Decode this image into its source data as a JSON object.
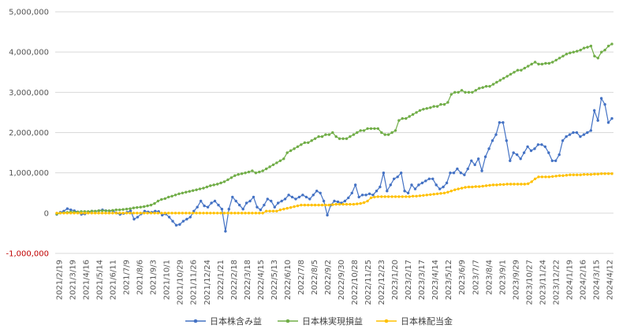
{
  "chart_data": {
    "type": "line",
    "y_ticks": [
      "5,000,000",
      "4,000,000",
      "3,000,000",
      "2,000,000",
      "1,000,000",
      "0",
      "-1,000,000"
    ],
    "y_tick_values": [
      5000000,
      4000000,
      3000000,
      2000000,
      1000000,
      0,
      -1000000
    ],
    "ylim": [
      -1000000,
      5000000
    ],
    "grid": "horizontal",
    "legend_position": "bottom",
    "x_labels": [
      "2021/2/19",
      "2021/3/19",
      "2021/4/16",
      "2021/5/14",
      "2021/6/11",
      "2021/7/9",
      "2021/8/6",
      "2021/9/3",
      "2021/10/1",
      "2021/10/29",
      "2021/11/26",
      "2021/12/24",
      "2022/1/21",
      "2022/2/18",
      "2022/3/18",
      "2022/4/15",
      "2022/5/13",
      "2022/6/10",
      "2022/7/8",
      "2022/8/5",
      "2022/9/2",
      "2022/9/30",
      "2022/10/28",
      "2022/11/25",
      "2022/12/23",
      "2023/1/20",
      "2023/2/17",
      "2023/3/17",
      "2023/4/14",
      "2023/5/12",
      "2023/6/9",
      "2023/7/7",
      "2023/8/4",
      "2023/9/1",
      "2023/9/29",
      "2023/10/27",
      "2023/11/24",
      "2023/12/22",
      "2024/1/19",
      "2024/2/16",
      "2024/3/15",
      "2024/4/12"
    ],
    "series": [
      {
        "name": "日本株含み益",
        "color": "#4472c4",
        "values": [
          -30000,
          20000,
          50000,
          110000,
          80000,
          60000,
          30000,
          -30000,
          -20000,
          20000,
          50000,
          40000,
          60000,
          80000,
          60000,
          50000,
          60000,
          0,
          -30000,
          -10000,
          20000,
          60000,
          -150000,
          -100000,
          -20000,
          50000,
          30000,
          20000,
          50000,
          40000,
          -50000,
          -20000,
          -100000,
          -200000,
          -300000,
          -280000,
          -200000,
          -150000,
          -100000,
          50000,
          150000,
          300000,
          180000,
          150000,
          250000,
          300000,
          200000,
          100000,
          -450000,
          100000,
          400000,
          300000,
          200000,
          100000,
          250000,
          300000,
          400000,
          150000,
          80000,
          200000,
          350000,
          300000,
          150000,
          250000,
          300000,
          350000,
          450000,
          400000,
          350000,
          400000,
          450000,
          400000,
          350000,
          450000,
          550000,
          500000,
          300000,
          -50000,
          200000,
          300000,
          280000,
          250000,
          300000,
          380000,
          500000,
          700000,
          400000,
          450000,
          450000,
          480000,
          450000,
          550000,
          650000,
          1000000,
          550000,
          700000,
          850000,
          900000,
          1000000,
          550000,
          500000,
          700000,
          600000,
          700000,
          750000,
          800000,
          850000,
          850000,
          700000,
          600000,
          650000,
          750000,
          1000000,
          1000000,
          1100000,
          1000000,
          950000,
          1100000,
          1300000,
          1200000,
          1350000,
          1050000,
          1400000,
          1600000,
          1800000,
          1950000,
          2250000,
          2250000,
          1800000,
          1300000,
          1500000,
          1450000,
          1350000,
          1500000,
          1650000,
          1550000,
          1600000,
          1700000,
          1700000,
          1650000,
          1500000,
          1300000,
          1300000,
          1450000,
          1800000,
          1900000,
          1950000,
          2000000,
          2000000,
          1900000,
          1950000,
          2000000,
          2050000,
          2550000,
          2300000,
          2850000,
          2700000,
          2250000,
          2350000
        ]
      },
      {
        "name": "日本株実現損益",
        "color": "#70ad47",
        "values": [
          -20000,
          0,
          10000,
          20000,
          30000,
          30000,
          30000,
          40000,
          40000,
          40000,
          50000,
          50000,
          60000,
          60000,
          60000,
          60000,
          70000,
          80000,
          80000,
          90000,
          100000,
          110000,
          130000,
          140000,
          150000,
          160000,
          180000,
          200000,
          240000,
          300000,
          340000,
          360000,
          400000,
          420000,
          450000,
          480000,
          500000,
          520000,
          540000,
          560000,
          580000,
          600000,
          620000,
          650000,
          680000,
          700000,
          720000,
          750000,
          780000,
          830000,
          880000,
          930000,
          960000,
          980000,
          1000000,
          1020000,
          1050000,
          1000000,
          1020000,
          1050000,
          1100000,
          1150000,
          1200000,
          1250000,
          1300000,
          1350000,
          1500000,
          1550000,
          1600000,
          1650000,
          1700000,
          1750000,
          1750000,
          1800000,
          1850000,
          1900000,
          1900000,
          1950000,
          1950000,
          2000000,
          1900000,
          1850000,
          1850000,
          1850000,
          1900000,
          1950000,
          2000000,
          2050000,
          2050000,
          2100000,
          2100000,
          2100000,
          2100000,
          2000000,
          1950000,
          1950000,
          2000000,
          2050000,
          2300000,
          2350000,
          2350000,
          2400000,
          2450000,
          2500000,
          2550000,
          2580000,
          2600000,
          2620000,
          2650000,
          2650000,
          2700000,
          2700000,
          2750000,
          2950000,
          3000000,
          3000000,
          3050000,
          3000000,
          3000000,
          3000000,
          3050000,
          3100000,
          3120000,
          3150000,
          3150000,
          3200000,
          3250000,
          3300000,
          3350000,
          3400000,
          3450000,
          3500000,
          3550000,
          3550000,
          3600000,
          3650000,
          3700000,
          3750000,
          3700000,
          3700000,
          3720000,
          3720000,
          3750000,
          3800000,
          3850000,
          3900000,
          3950000,
          3980000,
          4000000,
          4020000,
          4050000,
          4100000,
          4120000,
          4150000,
          3900000,
          3850000,
          4000000,
          4050000,
          4150000,
          4200000
        ]
      },
      {
        "name": "日本株配当金",
        "color": "#ffc000",
        "values": [
          0,
          0,
          0,
          0,
          0,
          0,
          0,
          0,
          0,
          0,
          0,
          0,
          0,
          0,
          0,
          0,
          0,
          0,
          0,
          0,
          0,
          0,
          0,
          0,
          0,
          0,
          0,
          0,
          0,
          0,
          0,
          0,
          0,
          0,
          0,
          0,
          0,
          0,
          0,
          0,
          0,
          0,
          0,
          0,
          0,
          0,
          0,
          0,
          0,
          0,
          0,
          0,
          0,
          0,
          0,
          0,
          0,
          0,
          0,
          0,
          50000,
          50000,
          50000,
          50000,
          80000,
          100000,
          120000,
          140000,
          160000,
          180000,
          200000,
          200000,
          200000,
          200000,
          200000,
          200000,
          200000,
          200000,
          200000,
          210000,
          220000,
          220000,
          220000,
          220000,
          220000,
          220000,
          230000,
          240000,
          260000,
          300000,
          380000,
          400000,
          410000,
          410000,
          410000,
          410000,
          410000,
          410000,
          410000,
          410000,
          410000,
          410000,
          420000,
          420000,
          430000,
          440000,
          450000,
          460000,
          470000,
          480000,
          490000,
          500000,
          520000,
          550000,
          580000,
          600000,
          620000,
          640000,
          650000,
          650000,
          660000,
          660000,
          670000,
          680000,
          690000,
          700000,
          700000,
          710000,
          710000,
          720000,
          720000,
          720000,
          720000,
          720000,
          720000,
          730000,
          780000,
          850000,
          900000,
          900000,
          900000,
          900000,
          910000,
          920000,
          930000,
          930000,
          940000,
          950000,
          950000,
          950000,
          950000,
          960000,
          960000,
          960000,
          970000,
          970000,
          980000,
          980000,
          980000,
          980000
        ]
      }
    ]
  }
}
